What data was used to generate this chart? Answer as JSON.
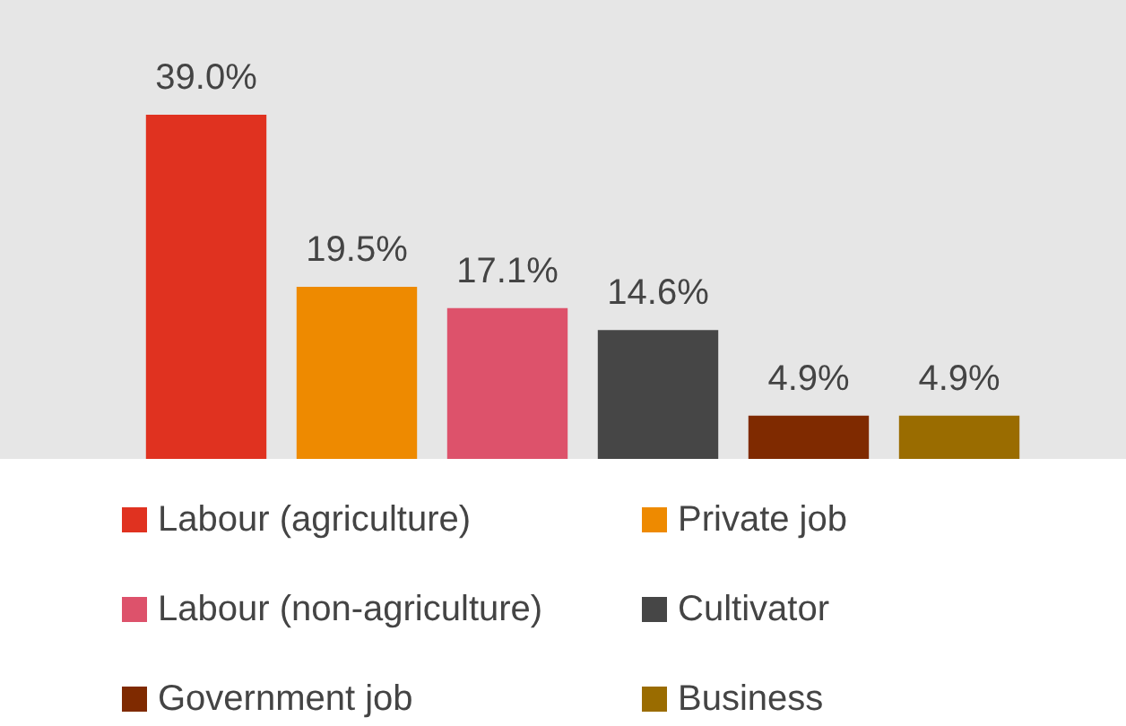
{
  "chart_data": {
    "type": "bar",
    "categories": [
      null
    ],
    "ylim": [
      0,
      52
    ],
    "legend": "bottom",
    "series": [
      {
        "name": "Labour (agriculture)",
        "color": "#e03220",
        "values": [
          39.0
        ],
        "value_labels": [
          "39.0%"
        ]
      },
      {
        "name": "Private job",
        "color": "#ee8a00",
        "values": [
          19.5
        ],
        "value_labels": [
          "19.5%"
        ]
      },
      {
        "name": "Labour (non-agriculture)",
        "color": "#dd526b",
        "values": [
          17.1
        ],
        "value_labels": [
          "17.1%"
        ]
      },
      {
        "name": "Cultivator",
        "color": "#464646",
        "values": [
          14.6
        ],
        "value_labels": [
          "14.6%"
        ]
      },
      {
        "name": "Government job",
        "color": "#7f2a00",
        "values": [
          4.9
        ],
        "value_labels": [
          "4.9%"
        ]
      },
      {
        "name": "Business",
        "color": "#9a6c00",
        "values": [
          4.9
        ],
        "value_labels": [
          "4.9%"
        ]
      }
    ]
  }
}
